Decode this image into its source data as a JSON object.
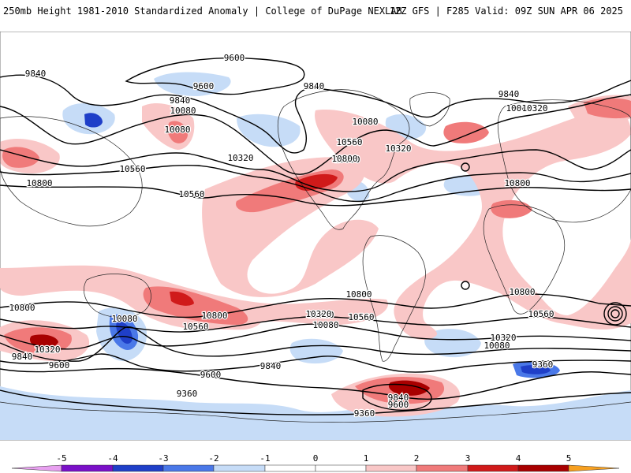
{
  "header": {
    "title": "250mb Height 1981-2010 Standardized Anomaly | College of DuPage NEXLAB",
    "run_info": "12Z GFS | F285 Valid: 09Z SUN APR 06 2025"
  },
  "colors": {
    "minus5": "#e8a0f0",
    "minus4": "#7a10c8",
    "minus3": "#1f3fc8",
    "minus2": "#4a78e8",
    "minus1": "#c6dcf7",
    "neutral": "#ffffff",
    "plus1": "#f9c7c7",
    "plus2": "#f07a7a",
    "plus3": "#d01a1a",
    "plus4": "#a80000",
    "plus5": "#f7a020",
    "contour": "#000000"
  },
  "colorbar": {
    "ticks": [
      "-5",
      "-4",
      "-3",
      "-2",
      "-1",
      "0",
      "1",
      "2",
      "3",
      "4",
      "5"
    ]
  },
  "contour_labels": [
    {
      "text": "9840"
    },
    {
      "text": "9600"
    },
    {
      "text": "9600"
    },
    {
      "text": "9840"
    },
    {
      "text": "10080"
    },
    {
      "text": "9840"
    },
    {
      "text": "10080"
    },
    {
      "text": "10560"
    },
    {
      "text": "10800"
    },
    {
      "text": "10320"
    },
    {
      "text": "10080"
    },
    {
      "text": "10320"
    },
    {
      "text": "9840"
    },
    {
      "text": "10080"
    },
    {
      "text": "10320"
    },
    {
      "text": "10560"
    },
    {
      "text": "10800"
    },
    {
      "text": "10560"
    },
    {
      "text": "10800"
    },
    {
      "text": "10800"
    },
    {
      "text": "10800"
    },
    {
      "text": "10800"
    },
    {
      "text": "10800"
    },
    {
      "text": "10080"
    },
    {
      "text": "10560"
    },
    {
      "text": "10800"
    },
    {
      "text": "10320"
    },
    {
      "text": "10560"
    },
    {
      "text": "10080"
    },
    {
      "text": "10320"
    },
    {
      "text": "10560"
    },
    {
      "text": "10320"
    },
    {
      "text": "10080"
    },
    {
      "text": "9360"
    },
    {
      "text": "9840"
    },
    {
      "text": "9600"
    },
    {
      "text": "9840"
    },
    {
      "text": "9600"
    },
    {
      "text": "9360"
    },
    {
      "text": "9840"
    },
    {
      "text": "9600"
    },
    {
      "text": "9360"
    },
    {
      "text": "10320"
    }
  ]
}
